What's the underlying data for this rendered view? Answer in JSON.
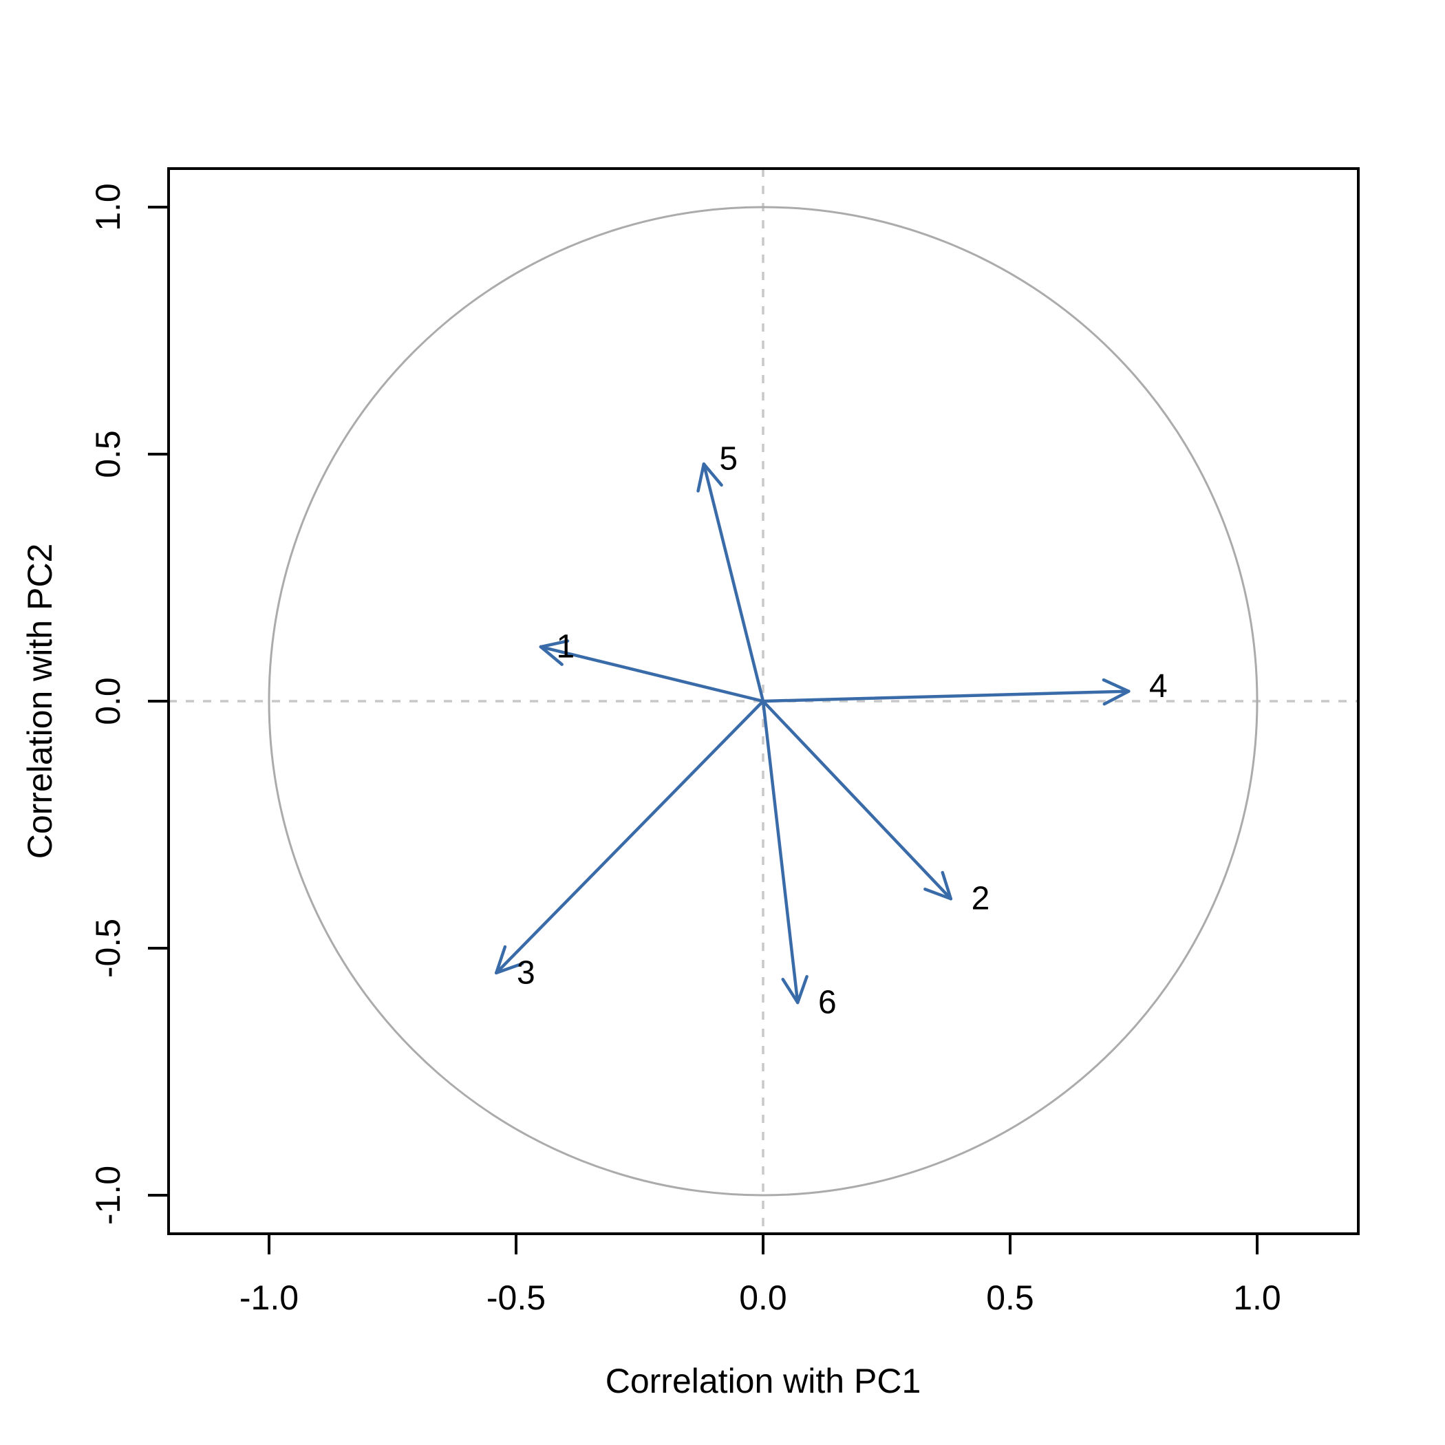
{
  "figure": {
    "kind": "PCA correlation circle plot (R base graphics)",
    "background": "#ffffff"
  },
  "chart_data": {
    "type": "scatter",
    "subtype": "pca-correlation-circle-with-arrows",
    "title": "",
    "xlabel": "Correlation with PC1",
    "ylabel": "Correlation with PC2",
    "xlim": [
      -1.2,
      1.2
    ],
    "ylim": [
      -1.08,
      1.08
    ],
    "grid": false,
    "legend": "none",
    "x_ticks": [
      -1.0,
      -0.5,
      0.0,
      0.5,
      1.0
    ],
    "x_tick_labels": [
      "-1.0",
      "-0.5",
      "0.0",
      "0.5",
      "1.0"
    ],
    "y_ticks": [
      -1.0,
      -0.5,
      0.0,
      0.5,
      1.0
    ],
    "y_tick_labels": [
      "-1.0",
      "-0.5",
      "0.0",
      "0.5",
      "1.0"
    ],
    "unit_circle": {
      "center_x": 0,
      "center_y": 0,
      "radius": 1.0
    },
    "reference_lines": [
      {
        "orientation": "horizontal",
        "value": 0,
        "style": "dashed"
      },
      {
        "orientation": "vertical",
        "value": 0,
        "style": "dashed"
      }
    ],
    "arrows": [
      {
        "label": "1",
        "x": -0.45,
        "y": 0.11,
        "label_x": -0.4,
        "label_y": 0.11
      },
      {
        "label": "2",
        "x": 0.38,
        "y": -0.4,
        "label_x": 0.44,
        "label_y": -0.4
      },
      {
        "label": "3",
        "x": -0.54,
        "y": -0.55,
        "label_x": -0.48,
        "label_y": -0.55
      },
      {
        "label": "4",
        "x": 0.74,
        "y": 0.02,
        "label_x": 0.8,
        "label_y": 0.03
      },
      {
        "label": "5",
        "x": -0.12,
        "y": 0.48,
        "label_x": -0.07,
        "label_y": 0.49
      },
      {
        "label": "6",
        "x": 0.07,
        "y": -0.61,
        "label_x": 0.13,
        "label_y": -0.61
      }
    ],
    "colors": {
      "arrow": "#3a6ba9",
      "circle": "#ababab",
      "reference_line": "#c8c8c8",
      "axis": "#000000",
      "text": "#000000"
    }
  }
}
